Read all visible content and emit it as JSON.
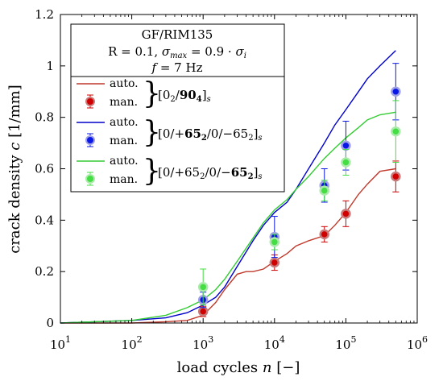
{
  "chart_data": {
    "type": "line",
    "x_scale": "log",
    "xlim": [
      10,
      1000000
    ],
    "ylim": [
      0,
      1.2
    ],
    "grid": false,
    "legend_position": "top-left",
    "xlabel_text": "load cycles ",
    "xlabel_var": "n",
    "xlabel_unit": " [−]",
    "ylabel_text": "crack density ",
    "ylabel_var": "c",
    "ylabel_unit": " [1/mm]",
    "x_ticks": [
      {
        "value": 10,
        "base": "10",
        "exp": "1"
      },
      {
        "value": 100,
        "base": "10",
        "exp": "2"
      },
      {
        "value": 1000,
        "base": "10",
        "exp": "3"
      },
      {
        "value": 10000,
        "base": "10",
        "exp": "4"
      },
      {
        "value": 100000,
        "base": "10",
        "exp": "5"
      },
      {
        "value": 1000000,
        "base": "10",
        "exp": "6"
      }
    ],
    "y_ticks": [
      {
        "value": 0,
        "label": "0"
      },
      {
        "value": 0.2,
        "label": "0.2"
      },
      {
        "value": 0.4,
        "label": "0.4"
      },
      {
        "value": 0.6,
        "label": "0.6"
      },
      {
        "value": 0.8,
        "label": "0.8"
      },
      {
        "value": 1.0,
        "label": "1"
      },
      {
        "value": 1.2,
        "label": "1.2"
      }
    ],
    "legend_header": {
      "line1": "GF/RIM135",
      "line2": "R = 0.1, σmax = 0.9 · σi",
      "line3": "f = 7 Hz"
    },
    "series": [
      {
        "auto_label": "auto.",
        "man_label": "man.",
        "layup": "[02/904]s",
        "line_color": "#c0392b",
        "marker_color": "#d00000",
        "halo_color": "#c87a7a",
        "auto": {
          "x": [
            10,
            100,
            300,
            600,
            1000,
            1500,
            2000,
            3000,
            4000,
            5000,
            7000,
            10000,
            15000,
            20000,
            30000,
            50000,
            70000,
            100000,
            150000,
            200000,
            300000,
            500000
          ],
          "y": [
            0.0,
            0.0,
            0.005,
            0.01,
            0.03,
            0.08,
            0.13,
            0.19,
            0.2,
            0.2,
            0.21,
            0.24,
            0.27,
            0.3,
            0.32,
            0.34,
            0.38,
            0.43,
            0.5,
            0.54,
            0.59,
            0.6
          ]
        },
        "manual": {
          "x": [
            1000,
            10000,
            50000,
            100000,
            500000
          ],
          "y": [
            0.045,
            0.235,
            0.345,
            0.425,
            0.57
          ],
          "err": [
            0.02,
            0.03,
            0.03,
            0.05,
            0.06
          ]
        }
      },
      {
        "auto_label": "auto.",
        "man_label": "man.",
        "layup": "[0/+652/0/−652]s",
        "line_color": "#0000cc",
        "marker_color": "#0a18e6",
        "halo_color": "#a0a0e6",
        "auto": {
          "x": [
            10,
            100,
            300,
            600,
            1000,
            1500,
            2000,
            3000,
            5000,
            7000,
            10000,
            15000,
            20000,
            30000,
            50000,
            70000,
            100000,
            150000,
            200000,
            300000,
            500000
          ],
          "y": [
            0.0,
            0.01,
            0.02,
            0.04,
            0.07,
            0.1,
            0.14,
            0.22,
            0.32,
            0.38,
            0.43,
            0.47,
            0.52,
            0.6,
            0.7,
            0.77,
            0.83,
            0.9,
            0.95,
            1.0,
            1.06
          ]
        },
        "manual": {
          "x": [
            1000,
            10000,
            50000,
            100000,
            500000
          ],
          "y": [
            0.09,
            0.335,
            0.535,
            0.69,
            0.9
          ],
          "err": [
            0.03,
            0.08,
            0.065,
            0.095,
            0.11
          ]
        }
      },
      {
        "auto_label": "auto.",
        "man_label": "man.",
        "layup": "[0/+652/0/−652]s",
        "line_color": "#33cc33",
        "marker_color": "#44dd44",
        "halo_color": "#aaeaaa",
        "auto": {
          "x": [
            10,
            100,
            300,
            600,
            1000,
            1500,
            2000,
            3000,
            5000,
            7000,
            10000,
            15000,
            20000,
            30000,
            50000,
            70000,
            100000,
            150000,
            200000,
            300000,
            500000
          ],
          "y": [
            0.0,
            0.01,
            0.03,
            0.06,
            0.09,
            0.13,
            0.17,
            0.24,
            0.33,
            0.39,
            0.44,
            0.48,
            0.52,
            0.57,
            0.64,
            0.68,
            0.72,
            0.76,
            0.79,
            0.81,
            0.82
          ]
        },
        "manual": {
          "x": [
            1000,
            10000,
            50000,
            100000,
            500000
          ],
          "y": [
            0.14,
            0.315,
            0.515,
            0.625,
            0.745
          ],
          "err": [
            0.07,
            0.03,
            0.04,
            0.05,
            0.12
          ]
        }
      }
    ]
  }
}
